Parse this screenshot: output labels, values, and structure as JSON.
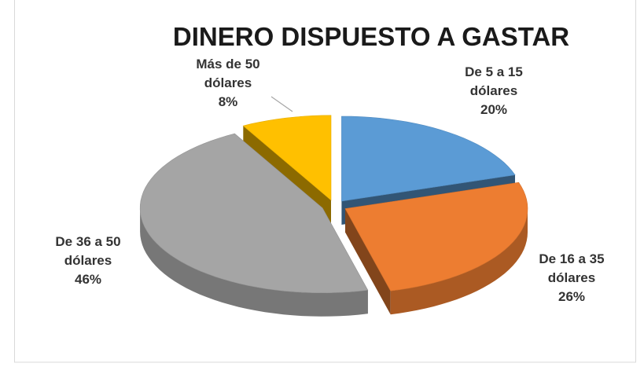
{
  "chart_data": {
    "type": "pie",
    "title": "DINERO DISPUESTO A GASTAR",
    "categories": [
      "De 5 a 15 dólares",
      "De 16 a 35 dólares",
      "De 36 a 50 dólares",
      "Más de 50 dólares"
    ],
    "values": [
      20,
      26,
      46,
      8
    ],
    "value_labels": [
      "20%",
      "26%",
      "46%",
      "8%"
    ],
    "colors": [
      "#5b9bd5",
      "#ed7d31",
      "#a5a5a5",
      "#ffc000"
    ]
  }
}
